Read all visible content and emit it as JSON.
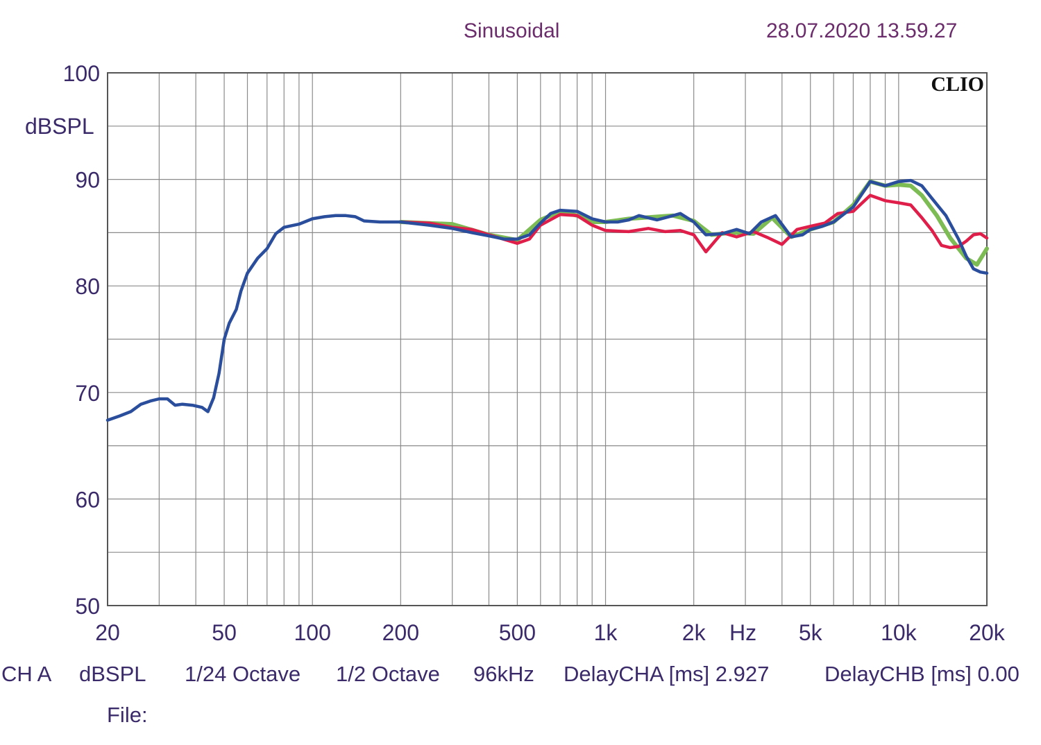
{
  "header": {
    "mode": "Sinusoidal",
    "datetime": "28.07.2020 13.59.27"
  },
  "footer": {
    "channel": "CH A",
    "unit": "dBSPL",
    "resolution": "1/24 Octave",
    "smoothing": "1/2 Octave",
    "sample_rate": "96kHz",
    "delay_a": "DelayCHA [ms] 2.927",
    "delay_b": "DelayCHB [ms] 0.00",
    "file_label": "File:"
  },
  "chart_data": {
    "type": "line",
    "title": "Sinusoidal",
    "brand": "CLIO",
    "ylabel": "dBSPL",
    "xlabel": "Hz",
    "x_scale": "log",
    "xlim": [
      20,
      20000
    ],
    "ylim": [
      50,
      100
    ],
    "grid": true,
    "y_ticks": [
      50,
      60,
      70,
      80,
      90,
      100
    ],
    "x_ticks": [
      {
        "value": 20,
        "label": "20"
      },
      {
        "value": 50,
        "label": "50"
      },
      {
        "value": 100,
        "label": "100"
      },
      {
        "value": 200,
        "label": "200"
      },
      {
        "value": 500,
        "label": "500"
      },
      {
        "value": 1000,
        "label": "1k"
      },
      {
        "value": 2000,
        "label": "2k"
      },
      {
        "value": 5000,
        "label": "5k"
      },
      {
        "value": 10000,
        "label": "10k"
      },
      {
        "value": 20000,
        "label": "20k"
      }
    ],
    "unit_label": "Hz",
    "series": [
      {
        "color": "#7dbb55",
        "points": [
          [
            200,
            86.0
          ],
          [
            300,
            85.8
          ],
          [
            400,
            84.8
          ],
          [
            500,
            84.3
          ],
          [
            600,
            86.2
          ],
          [
            700,
            87.0
          ],
          [
            800,
            86.6
          ],
          [
            900,
            86.0
          ],
          [
            1000,
            86.0
          ],
          [
            1200,
            86.3
          ],
          [
            1500,
            86.5
          ],
          [
            1700,
            86.6
          ],
          [
            2000,
            86.1
          ],
          [
            2300,
            84.8
          ],
          [
            2700,
            85.0
          ],
          [
            3200,
            84.9
          ],
          [
            3700,
            86.4
          ],
          [
            4300,
            84.6
          ],
          [
            5000,
            85.3
          ],
          [
            6000,
            86.0
          ],
          [
            7000,
            87.6
          ],
          [
            8000,
            89.8
          ],
          [
            9000,
            89.4
          ],
          [
            10000,
            89.5
          ],
          [
            11000,
            89.4
          ],
          [
            12000,
            88.5
          ],
          [
            13500,
            86.6
          ],
          [
            15000,
            84.5
          ],
          [
            17000,
            82.6
          ],
          [
            18500,
            82.0
          ],
          [
            20000,
            83.5
          ]
        ]
      },
      {
        "color": "#e01e4a",
        "points": [
          [
            200,
            86.0
          ],
          [
            250,
            85.9
          ],
          [
            300,
            85.5
          ],
          [
            350,
            85.3
          ],
          [
            400,
            84.8
          ],
          [
            500,
            84.0
          ],
          [
            550,
            84.4
          ],
          [
            600,
            85.7
          ],
          [
            700,
            86.7
          ],
          [
            800,
            86.6
          ],
          [
            900,
            85.7
          ],
          [
            1000,
            85.2
          ],
          [
            1200,
            85.1
          ],
          [
            1400,
            85.4
          ],
          [
            1600,
            85.1
          ],
          [
            1800,
            85.2
          ],
          [
            2000,
            84.8
          ],
          [
            2200,
            83.2
          ],
          [
            2500,
            85.0
          ],
          [
            2800,
            84.6
          ],
          [
            3200,
            85.1
          ],
          [
            3600,
            84.5
          ],
          [
            4000,
            83.9
          ],
          [
            4500,
            85.3
          ],
          [
            5000,
            85.6
          ],
          [
            5600,
            85.9
          ],
          [
            6200,
            86.8
          ],
          [
            7000,
            87.0
          ],
          [
            8000,
            88.5
          ],
          [
            9000,
            88.0
          ],
          [
            10000,
            87.8
          ],
          [
            11000,
            87.6
          ],
          [
            12000,
            86.4
          ],
          [
            13000,
            85.2
          ],
          [
            14000,
            83.8
          ],
          [
            15000,
            83.6
          ],
          [
            16000,
            83.7
          ],
          [
            17000,
            84.2
          ],
          [
            18000,
            84.8
          ],
          [
            19000,
            84.9
          ],
          [
            20000,
            84.5
          ]
        ]
      },
      {
        "color": "#2b4e9c",
        "points": [
          [
            20,
            67.4
          ],
          [
            22,
            67.8
          ],
          [
            24,
            68.2
          ],
          [
            26,
            68.9
          ],
          [
            28,
            69.2
          ],
          [
            30,
            69.4
          ],
          [
            32,
            69.4
          ],
          [
            34,
            68.8
          ],
          [
            36,
            68.9
          ],
          [
            39,
            68.8
          ],
          [
            42,
            68.6
          ],
          [
            44,
            68.2
          ],
          [
            46,
            69.5
          ],
          [
            48,
            71.8
          ],
          [
            50,
            75.0
          ],
          [
            52,
            76.5
          ],
          [
            55,
            77.8
          ],
          [
            57,
            79.5
          ],
          [
            60,
            81.2
          ],
          [
            65,
            82.6
          ],
          [
            70,
            83.5
          ],
          [
            75,
            84.9
          ],
          [
            80,
            85.5
          ],
          [
            90,
            85.8
          ],
          [
            100,
            86.3
          ],
          [
            110,
            86.5
          ],
          [
            120,
            86.6
          ],
          [
            130,
            86.6
          ],
          [
            140,
            86.5
          ],
          [
            150,
            86.1
          ],
          [
            170,
            86.0
          ],
          [
            200,
            86.0
          ],
          [
            250,
            85.7
          ],
          [
            300,
            85.4
          ],
          [
            350,
            85.0
          ],
          [
            400,
            84.7
          ],
          [
            450,
            84.4
          ],
          [
            500,
            84.4
          ],
          [
            550,
            84.8
          ],
          [
            600,
            85.9
          ],
          [
            650,
            86.8
          ],
          [
            700,
            87.1
          ],
          [
            800,
            87.0
          ],
          [
            900,
            86.3
          ],
          [
            1000,
            86.0
          ],
          [
            1100,
            86.0
          ],
          [
            1200,
            86.2
          ],
          [
            1300,
            86.6
          ],
          [
            1500,
            86.2
          ],
          [
            1700,
            86.6
          ],
          [
            1800,
            86.8
          ],
          [
            2000,
            86.0
          ],
          [
            2200,
            84.8
          ],
          [
            2500,
            84.9
          ],
          [
            2800,
            85.3
          ],
          [
            3100,
            84.9
          ],
          [
            3400,
            86.0
          ],
          [
            3800,
            86.6
          ],
          [
            4300,
            84.6
          ],
          [
            4700,
            84.8
          ],
          [
            5000,
            85.3
          ],
          [
            5500,
            85.6
          ],
          [
            6000,
            86.0
          ],
          [
            7000,
            87.4
          ],
          [
            8000,
            89.8
          ],
          [
            9000,
            89.4
          ],
          [
            10000,
            89.8
          ],
          [
            11000,
            89.9
          ],
          [
            12000,
            89.4
          ],
          [
            13000,
            88.2
          ],
          [
            14500,
            86.6
          ],
          [
            16000,
            84.4
          ],
          [
            17000,
            82.8
          ],
          [
            18000,
            81.6
          ],
          [
            19000,
            81.3
          ],
          [
            20000,
            81.2
          ]
        ]
      }
    ]
  }
}
